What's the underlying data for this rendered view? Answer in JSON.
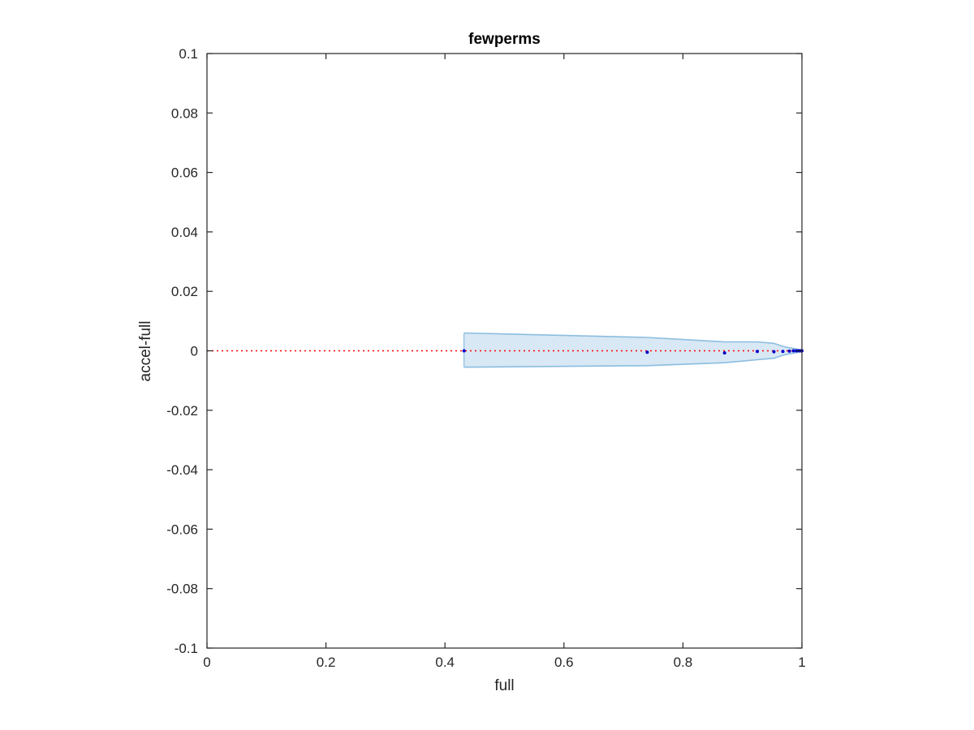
{
  "chart_data": {
    "type": "scatter",
    "title": "fewperms",
    "xlabel": "full",
    "ylabel": "accel-full",
    "xlim": [
      0,
      1
    ],
    "ylim": [
      -0.1,
      0.1
    ],
    "xticks": [
      0,
      0.2,
      0.4,
      0.6,
      0.8,
      1
    ],
    "xtick_labels": [
      "0",
      "0.2",
      "0.4",
      "0.6",
      "0.8",
      "1"
    ],
    "yticks": [
      0.1,
      0.08,
      0.06,
      0.04,
      0.02,
      0,
      -0.02,
      -0.04,
      -0.06,
      -0.08,
      -0.1
    ],
    "ytick_labels": [
      "0.1",
      "0.08",
      "0.06",
      "0.04",
      "0.02",
      "0",
      "-0.02",
      "-0.04",
      "-0.06",
      "-0.08",
      "-0.1"
    ],
    "grid": false,
    "reference_line": {
      "y": 0,
      "style": "dotted",
      "color": "#ff0000"
    },
    "points": {
      "color": "#0000cc",
      "x": [
        0.432,
        0.74,
        0.87,
        0.925,
        0.953,
        0.968,
        0.979,
        0.986,
        0.991,
        0.995,
        0.998,
        1.0
      ],
      "y": [
        0.0,
        -0.0005,
        -0.0007,
        -0.0002,
        -0.0003,
        -0.0002,
        -0.0001,
        0.0,
        0.0,
        0.0,
        0.0,
        0.0
      ]
    },
    "band": {
      "fill": "#d8e8f4",
      "edge": "#8bbde0",
      "x": [
        0.432,
        0.74,
        0.87,
        0.925,
        0.953,
        0.968,
        0.979,
        0.986,
        0.991,
        0.995,
        0.998,
        1.0
      ],
      "upper": [
        0.006,
        0.0045,
        0.003,
        0.003,
        0.0025,
        0.0015,
        0.001,
        0.0008,
        0.0006,
        0.0004,
        0.0003,
        0.0002
      ],
      "lower": [
        -0.0055,
        -0.005,
        -0.004,
        -0.003,
        -0.0025,
        -0.0015,
        -0.001,
        -0.0008,
        -0.0006,
        -0.0004,
        -0.0003,
        -0.0002
      ]
    }
  }
}
